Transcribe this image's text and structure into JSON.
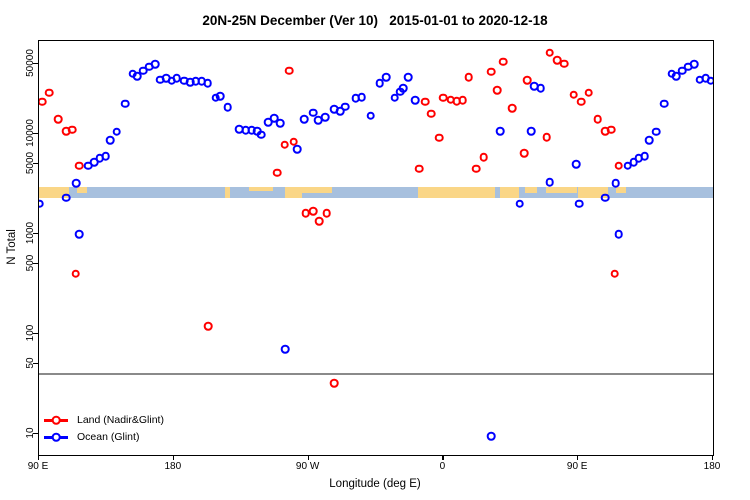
{
  "title": "20N-25N December (Ver 10)   2015-01-01 to 2020-12-18",
  "colors": {
    "land": "#FF0000",
    "ocean": "#0000FF",
    "map_ocean": "#A7C0DE",
    "map_land": "#FAD687",
    "reference_line": "#8A8A8A",
    "axis": "#000000"
  },
  "axes": {
    "x": {
      "label": "Longitude (deg E)",
      "ticks": [
        {
          "deg": 0,
          "label": "90 E"
        },
        {
          "deg": 90,
          "label": "180"
        },
        {
          "deg": 180,
          "label": "90 W"
        },
        {
          "deg": 270,
          "label": "0"
        },
        {
          "deg": 360,
          "label": "90 E"
        },
        {
          "deg": 450,
          "label": "180"
        }
      ],
      "span_deg": 450,
      "wrap_duplicate_lon_range": [
        90,
        180
      ]
    },
    "y": {
      "label": "N Total",
      "scale": "log10",
      "ticks": [
        50000,
        10000,
        5000,
        1000,
        500,
        100,
        50,
        10
      ],
      "top_value": 85000,
      "bottom_value": 6.3
    }
  },
  "reference_line_value": 40,
  "map_band": {
    "y_top_value": 2950,
    "y_bottom_value": 2280,
    "land_segments": [
      {
        "d1": 0,
        "d2": 20,
        "part": "full"
      },
      {
        "d1": 25.4,
        "d2": 32,
        "part": "top"
      },
      {
        "d1": 124,
        "d2": 127.5,
        "part": "full"
      },
      {
        "d1": 140,
        "d2": 156,
        "part": "fleck"
      },
      {
        "d1": 164,
        "d2": 175.6,
        "part": "full"
      },
      {
        "d1": 175.6,
        "d2": 195.6,
        "part": "top"
      },
      {
        "d1": 253,
        "d2": 304.4,
        "part": "full"
      },
      {
        "d1": 307.8,
        "d2": 320.5,
        "part": "full"
      },
      {
        "d1": 324.5,
        "d2": 332.5,
        "part": "top"
      },
      {
        "d1": 338.5,
        "d2": 359.2,
        "part": "top"
      },
      {
        "d1": 359.9,
        "d2": 379.9,
        "part": "full"
      },
      {
        "d1": 385.2,
        "d2": 392,
        "part": "top"
      }
    ]
  },
  "legend": {
    "entries": [
      {
        "label": "Land (Nadir&Glint)",
        "color": "#FF0000"
      },
      {
        "label": "Ocean (Glint)",
        "color": "#0000FF"
      }
    ]
  },
  "chart_data": {
    "type": "scatter",
    "title": "20N-25N December (Ver 10)   2015-01-01 to 2020-12-18",
    "xlabel": "Longitude (deg E)",
    "ylabel": "N Total",
    "y_scale": "log",
    "hline": 40,
    "series": [
      {
        "name": "Land (Nadir&Glint)",
        "color": "#FF0000",
        "points": [
          [
            97,
            26000
          ],
          [
            92,
            21000
          ],
          [
            103,
            14000
          ],
          [
            108,
            10700
          ],
          [
            112,
            11000
          ],
          [
            117,
            4800
          ],
          [
            114.5,
            400
          ],
          [
            -103,
            43000
          ],
          [
            -106,
            7800
          ],
          [
            -100,
            8400
          ],
          [
            -111,
            4100
          ],
          [
            -157,
            120
          ],
          [
            -73,
            32
          ],
          [
            -12,
            21000
          ],
          [
            -8,
            16000
          ],
          [
            -3,
            9200
          ],
          [
            -16,
            4500
          ],
          [
            -92,
            1620
          ],
          [
            -87,
            1680
          ],
          [
            -83,
            1350
          ],
          [
            -78,
            1620
          ],
          [
            0,
            23000
          ],
          [
            5,
            22000
          ],
          [
            9,
            21300
          ],
          [
            13,
            21800
          ],
          [
            17,
            37000
          ],
          [
            32,
            42000
          ],
          [
            40,
            53000
          ],
          [
            36,
            27500
          ],
          [
            46,
            18000
          ],
          [
            56,
            34500
          ],
          [
            71,
            65000
          ],
          [
            76,
            55000
          ],
          [
            80.5,
            50500
          ],
          [
            87,
            24700
          ],
          [
            69,
            9300
          ],
          [
            54,
            6400
          ],
          [
            27,
            5900
          ],
          [
            22,
            4500
          ]
        ]
      },
      {
        "name": "Ocean (Glint)",
        "color": "#0000FF",
        "points": [
          [
            123,
            4800
          ],
          [
            127,
            5200
          ],
          [
            130.5,
            5700
          ],
          [
            134.5,
            6000
          ],
          [
            137.5,
            8700
          ],
          [
            142,
            10500
          ],
          [
            147.5,
            20000
          ],
          [
            152.5,
            40000
          ],
          [
            155.5,
            38000
          ],
          [
            159.5,
            43000
          ],
          [
            163.5,
            47000
          ],
          [
            167.5,
            50000
          ],
          [
            171,
            35000
          ],
          [
            175,
            36000
          ],
          [
            178.5,
            34000
          ],
          [
            115,
            3200
          ],
          [
            108,
            2300
          ],
          [
            90.5,
            2000
          ],
          [
            117,
            1000
          ],
          [
            -178,
            36000
          ],
          [
            -173,
            34000
          ],
          [
            -169,
            33000
          ],
          [
            -165.5,
            33700
          ],
          [
            -161.5,
            33700
          ],
          [
            -157.5,
            32200
          ],
          [
            -152,
            23000
          ],
          [
            -149,
            24000
          ],
          [
            -144,
            18600
          ],
          [
            -136.5,
            11100
          ],
          [
            -132,
            10900
          ],
          [
            -128,
            10900
          ],
          [
            -124.5,
            10600
          ],
          [
            -121.5,
            9800
          ],
          [
            -117,
            13200
          ],
          [
            -113,
            14300
          ],
          [
            -109,
            12900
          ],
          [
            -97.5,
            7000
          ],
          [
            -93,
            14000
          ],
          [
            -87,
            16300
          ],
          [
            -83.5,
            13800
          ],
          [
            -79,
            14700
          ],
          [
            -73,
            17700
          ],
          [
            -69,
            16800
          ],
          [
            -65.5,
            18700
          ],
          [
            -58.5,
            22800
          ],
          [
            -54.5,
            23400
          ],
          [
            -48.5,
            15200
          ],
          [
            -42.5,
            32100
          ],
          [
            -38,
            37200
          ],
          [
            -32.5,
            23100
          ],
          [
            -29,
            26600
          ],
          [
            -27,
            28700
          ],
          [
            -23.5,
            37200
          ],
          [
            -19,
            21700
          ],
          [
            38,
            10600
          ],
          [
            58.5,
            10600
          ],
          [
            60.5,
            30200
          ],
          [
            65,
            28900
          ],
          [
            88.5,
            5000
          ],
          [
            71,
            3300
          ],
          [
            51,
            2000
          ],
          [
            -105.5,
            70
          ],
          [
            32,
            9.5
          ]
        ]
      }
    ]
  }
}
